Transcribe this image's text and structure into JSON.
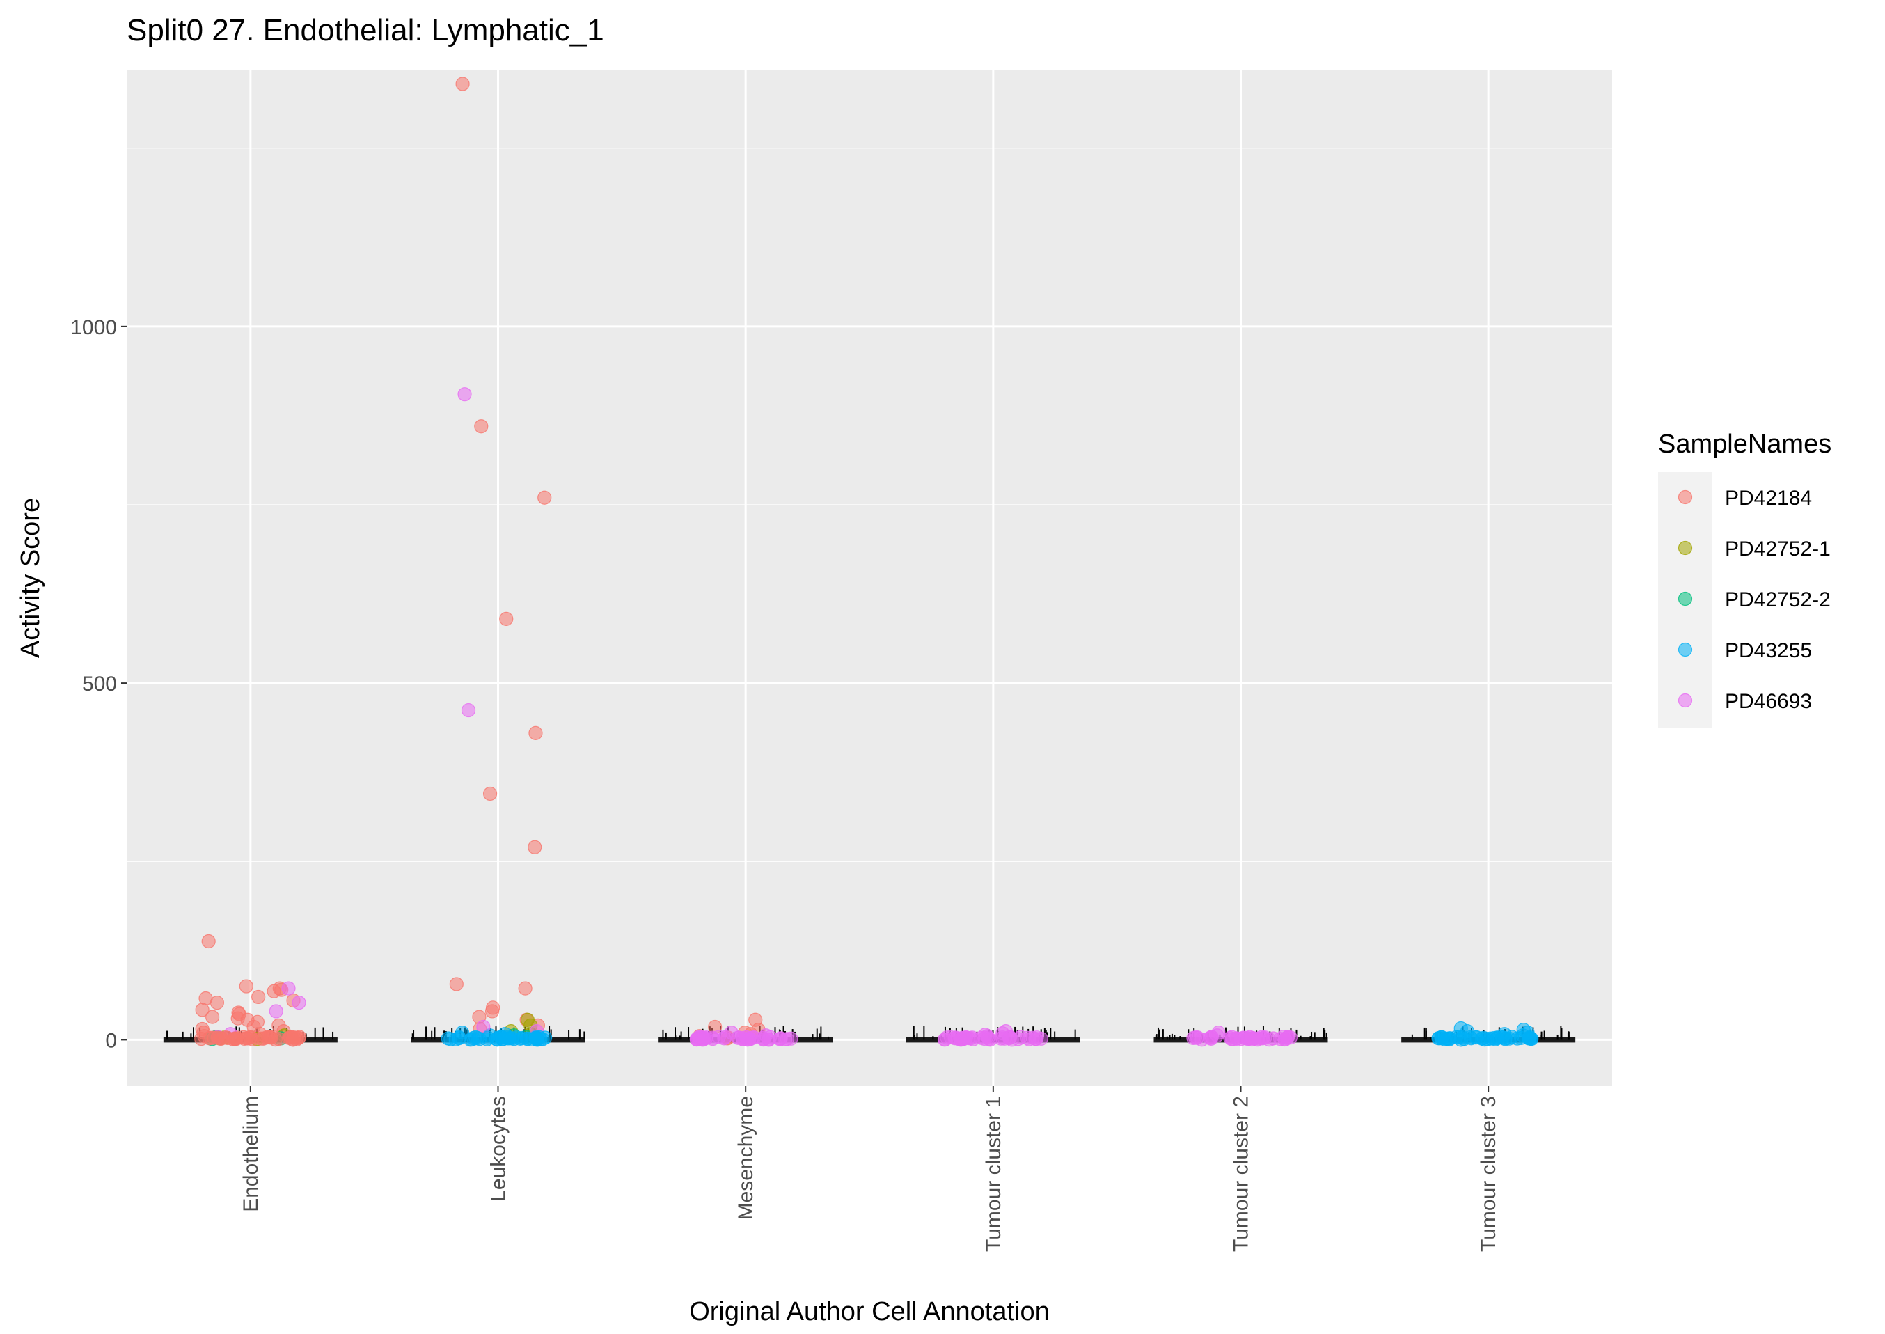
{
  "chart_data": {
    "type": "scatter",
    "title": "Split0 27. Endothelial: Lymphatic_1",
    "xlabel": "Original Author Cell Annotation",
    "ylabel": "Activity Score",
    "categories": [
      "Endothelium",
      "Leukocytes",
      "Mesenchyme",
      "Tumour cluster 1",
      "Tumour cluster 2",
      "Tumour cluster 3"
    ],
    "ylim": [
      -65,
      1360
    ],
    "yticks": [
      0,
      500,
      1000
    ],
    "ytick_labels": [
      "0",
      "500",
      "1000"
    ],
    "grid": true,
    "legend": {
      "title": "SampleNames",
      "position": "right"
    },
    "series": [
      {
        "name": "PD42184",
        "color": "#F8766D",
        "points": [
          [
            "Endothelium",
            72
          ],
          [
            "Endothelium",
            70
          ],
          [
            "Endothelium",
            75
          ],
          [
            "Endothelium",
            68
          ],
          [
            "Endothelium",
            60
          ],
          [
            "Endothelium",
            58
          ],
          [
            "Endothelium",
            55
          ],
          [
            "Endothelium",
            52
          ],
          [
            "Endothelium",
            42
          ],
          [
            "Endothelium",
            38
          ],
          [
            "Endothelium",
            36
          ],
          [
            "Endothelium",
            32
          ],
          [
            "Endothelium",
            30
          ],
          [
            "Endothelium",
            28
          ],
          [
            "Endothelium",
            25
          ],
          [
            "Endothelium",
            20
          ],
          [
            "Endothelium",
            18
          ],
          [
            "Endothelium",
            15
          ],
          [
            "Endothelium",
            12
          ],
          [
            "Endothelium",
            10
          ],
          [
            "Endothelium",
            8
          ],
          [
            "Endothelium",
            5
          ],
          [
            "Endothelium",
            3
          ],
          [
            "Endothelium",
            1
          ],
          [
            "Endothelium",
            138
          ],
          [
            "Leukocytes",
            1340
          ],
          [
            "Leukocytes",
            860
          ],
          [
            "Leukocytes",
            760
          ],
          [
            "Leukocytes",
            590
          ],
          [
            "Leukocytes",
            430
          ],
          [
            "Leukocytes",
            345
          ],
          [
            "Leukocytes",
            270
          ],
          [
            "Leukocytes",
            78
          ],
          [
            "Leukocytes",
            72
          ],
          [
            "Leukocytes",
            45
          ],
          [
            "Leukocytes",
            40
          ],
          [
            "Leukocytes",
            32
          ],
          [
            "Leukocytes",
            28
          ],
          [
            "Leukocytes",
            20
          ],
          [
            "Leukocytes",
            15
          ],
          [
            "Mesenchyme",
            28
          ],
          [
            "Mesenchyme",
            18
          ],
          [
            "Mesenchyme",
            14
          ],
          [
            "Mesenchyme",
            10
          ],
          [
            "Mesenchyme",
            8
          ],
          [
            "Mesenchyme",
            5
          ],
          [
            "Mesenchyme",
            3
          ],
          [
            "Mesenchyme",
            2
          ]
        ]
      },
      {
        "name": "PD42752-1",
        "color": "#A3A500",
        "points": [
          [
            "Endothelium",
            6
          ],
          [
            "Endothelium",
            3
          ],
          [
            "Endothelium",
            2
          ],
          [
            "Endothelium",
            1
          ],
          [
            "Leukocytes",
            28
          ],
          [
            "Leukocytes",
            20
          ],
          [
            "Leukocytes",
            12
          ],
          [
            "Leukocytes",
            8
          ]
        ]
      },
      {
        "name": "PD42752-2",
        "color": "#00BF7D",
        "points": [
          [
            "Endothelium",
            4
          ],
          [
            "Endothelium",
            2
          ],
          [
            "Endothelium",
            1
          ],
          [
            "Leukocytes",
            6
          ],
          [
            "Leukocytes",
            4
          ]
        ]
      },
      {
        "name": "PD43255",
        "color": "#00B0F6",
        "points": [
          [
            "Leukocytes",
            10
          ],
          [
            "Leukocytes",
            8
          ],
          [
            "Leukocytes",
            6
          ],
          [
            "Leukocytes",
            4
          ],
          [
            "Leukocytes",
            2
          ],
          [
            "Tumour cluster 3",
            16
          ],
          [
            "Tumour cluster 3",
            14
          ],
          [
            "Tumour cluster 3",
            12
          ],
          [
            "Tumour cluster 3",
            10
          ],
          [
            "Tumour cluster 3",
            8
          ],
          [
            "Tumour cluster 3",
            6
          ],
          [
            "Tumour cluster 3",
            4
          ],
          [
            "Tumour cluster 3",
            2
          ]
        ]
      },
      {
        "name": "PD46693",
        "color": "#E76BF3",
        "points": [
          [
            "Endothelium",
            72
          ],
          [
            "Endothelium",
            52
          ],
          [
            "Endothelium",
            40
          ],
          [
            "Endothelium",
            8
          ],
          [
            "Endothelium",
            4
          ],
          [
            "Leukocytes",
            905
          ],
          [
            "Leukocytes",
            462
          ],
          [
            "Leukocytes",
            18
          ],
          [
            "Leukocytes",
            12
          ],
          [
            "Mesenchyme",
            10
          ],
          [
            "Mesenchyme",
            6
          ],
          [
            "Mesenchyme",
            4
          ],
          [
            "Mesenchyme",
            2
          ],
          [
            "Tumour cluster 1",
            12
          ],
          [
            "Tumour cluster 1",
            9
          ],
          [
            "Tumour cluster 1",
            7
          ],
          [
            "Tumour cluster 1",
            5
          ],
          [
            "Tumour cluster 1",
            3
          ],
          [
            "Tumour cluster 2",
            10
          ],
          [
            "Tumour cluster 2",
            6
          ],
          [
            "Tumour cluster 2",
            4
          ],
          [
            "Tumour cluster 2",
            2
          ]
        ]
      }
    ]
  }
}
